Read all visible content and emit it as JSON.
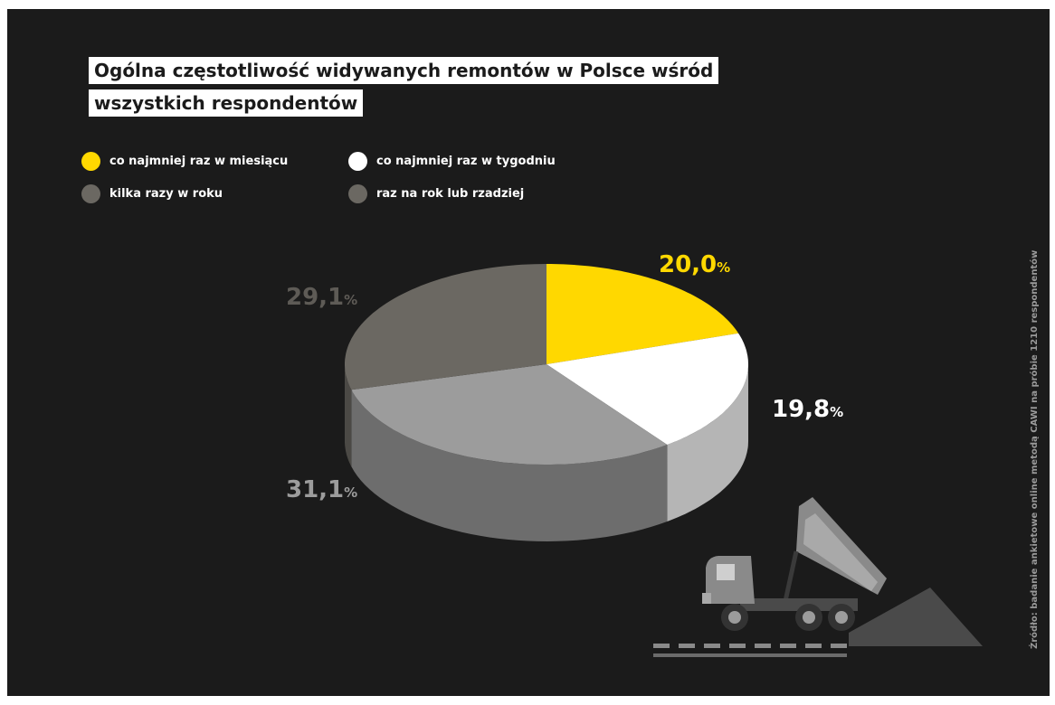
{
  "colors": {
    "background": "#1b1b1b",
    "yellow": "#ffd800",
    "white": "#ffffff",
    "dark_gray": "#6b6862",
    "light_gray": "#9c9c9c"
  },
  "chart_data": {
    "type": "pie",
    "title": "Ogólna częstotliwość widywanych remontów w Polsce wśród wszystkich respondentów",
    "title_lines": [
      "Ogólna częstotliwość widywanych remontów w Polsce wśród",
      "wszystkich respondentów"
    ],
    "legend": [
      {
        "label": "co najmniej raz w miesiącu",
        "color": "#ffd800"
      },
      {
        "label": "co najmniej raz w tygodniu",
        "color": "#ffffff"
      },
      {
        "label": "kilka razy w roku",
        "color": "#6b6862"
      },
      {
        "label": "raz na rok lub rzadziej",
        "color": "#6b6862"
      }
    ],
    "slices": [
      {
        "label": "co najmniej raz w miesiącu",
        "value": 20.0,
        "display": "20,0",
        "color": "#ffd800",
        "label_color": "#ffd800"
      },
      {
        "label": "co najmniej raz w tygodniu",
        "value": 19.8,
        "display": "19,8",
        "color": "#ffffff",
        "label_color": "#ffffff"
      },
      {
        "label": "kilka razy w roku",
        "value": 31.1,
        "display": "31,1",
        "color": "#9c9c9c",
        "label_color": "#9c9c9c"
      },
      {
        "label": "raz na rok lub rzadziej",
        "value": 29.1,
        "display": "29,1",
        "color": "#6b6862",
        "label_color": "#5e5b56"
      }
    ],
    "percent_sign": "%",
    "legend_placement": "top-left",
    "style": "3d"
  },
  "source": "Źródło: badanie ankietowe online metodą CAWI na próbie 1210 respondentów"
}
